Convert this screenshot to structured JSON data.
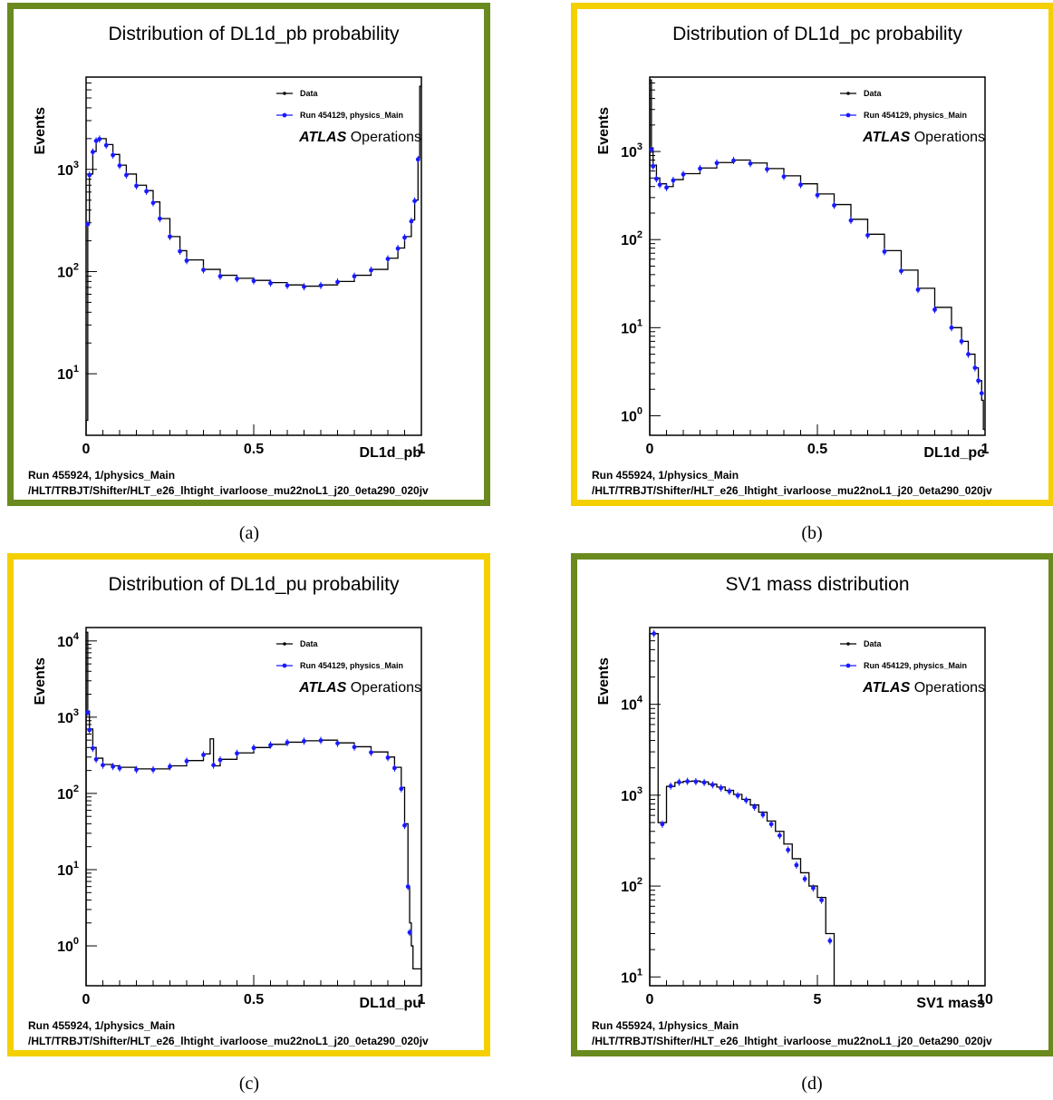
{
  "colors": {
    "green_border": "#6a8a1e",
    "yellow_border": "#f4d000",
    "data_line": "#000000",
    "reference_points": "#1a1aff"
  },
  "panels": [
    {
      "caption": "(a)",
      "border_color": "green",
      "title": "Distribution of DL1d_pb probability",
      "xlabel": "DL1d_pb",
      "ylabel": "Events",
      "x_ticks": [
        "0",
        "0.5",
        "1"
      ],
      "y_ticks": [
        {
          "base": "10",
          "exp": "1"
        },
        {
          "base": "10",
          "exp": "2"
        },
        {
          "base": "10",
          "exp": "3"
        }
      ],
      "legend": {
        "line": "Data",
        "points": "Run 454129, physics_Main"
      },
      "atlas_bold": "ATLAS",
      "atlas_rest": " Operations",
      "footer1": "Run 455924, 1/physics_Main",
      "footer2": "/HLT/TRBJT/Shifter/HLT_e26_lhtight_ivarloose_mu22noL1_j20_0eta290_020jv"
    },
    {
      "caption": "(b)",
      "border_color": "yellow",
      "title": "Distribution of DL1d_pc probability",
      "xlabel": "DL1d_pc",
      "ylabel": "Events",
      "x_ticks": [
        "0",
        "0.5",
        "1"
      ],
      "y_ticks": [
        {
          "base": "10",
          "exp": "0"
        },
        {
          "base": "10",
          "exp": "1"
        },
        {
          "base": "10",
          "exp": "2"
        },
        {
          "base": "10",
          "exp": "3"
        }
      ],
      "legend": {
        "line": "Data",
        "points": "Run 454129, physics_Main"
      },
      "atlas_bold": "ATLAS",
      "atlas_rest": " Operations",
      "footer1": "Run 455924, 1/physics_Main",
      "footer2": "/HLT/TRBJT/Shifter/HLT_e26_lhtight_ivarloose_mu22noL1_j20_0eta290_020jv"
    },
    {
      "caption": "(c)",
      "border_color": "yellow",
      "title": "Distribution of DL1d_pu probability",
      "xlabel": "DL1d_pu",
      "ylabel": "Events",
      "x_ticks": [
        "0",
        "0.5",
        "1"
      ],
      "y_ticks": [
        {
          "base": "10",
          "exp": "0"
        },
        {
          "base": "10",
          "exp": "1"
        },
        {
          "base": "10",
          "exp": "2"
        },
        {
          "base": "10",
          "exp": "3"
        },
        {
          "base": "10",
          "exp": "4"
        }
      ],
      "legend": {
        "line": "Data",
        "points": "Run 454129, physics_Main"
      },
      "atlas_bold": "ATLAS",
      "atlas_rest": " Operations",
      "footer1": "Run 455924, 1/physics_Main",
      "footer2": "/HLT/TRBJT/Shifter/HLT_e26_lhtight_ivarloose_mu22noL1_j20_0eta290_020jv"
    },
    {
      "caption": "(d)",
      "border_color": "green",
      "title": "SV1 mass distribution",
      "xlabel": "SV1 mass",
      "ylabel": "Events",
      "x_ticks": [
        "0",
        "5",
        "10"
      ],
      "y_ticks": [
        {
          "base": "10",
          "exp": "1"
        },
        {
          "base": "10",
          "exp": "2"
        },
        {
          "base": "10",
          "exp": "3"
        },
        {
          "base": "10",
          "exp": "4"
        }
      ],
      "legend": {
        "line": "Data",
        "points": "Run 454129, physics_Main"
      },
      "atlas_bold": "ATLAS",
      "atlas_rest": " Operations",
      "footer1": "Run 455924, 1/physics_Main",
      "footer2": "/HLT/TRBJT/Shifter/HLT_e26_lhtight_ivarloose_mu22noL1_j20_0eta290_020jv"
    }
  ],
  "chart_data": [
    {
      "type": "line",
      "title": "Distribution of DL1d_pb probability",
      "xlabel": "DL1d_pb",
      "ylabel": "Events",
      "xlim": [
        0,
        1
      ],
      "ylim": [
        2.5,
        8000
      ],
      "yscale": "log",
      "series": [
        {
          "name": "Data",
          "style": "step",
          "x": [
            0.0,
            0.005,
            0.01,
            0.02,
            0.03,
            0.04,
            0.06,
            0.08,
            0.1,
            0.12,
            0.15,
            0.18,
            0.2,
            0.22,
            0.25,
            0.28,
            0.3,
            0.35,
            0.4,
            0.45,
            0.5,
            0.55,
            0.6,
            0.65,
            0.7,
            0.75,
            0.8,
            0.85,
            0.9,
            0.93,
            0.95,
            0.97,
            0.98,
            0.99,
            0.995
          ],
          "y": [
            3.5,
            300,
            900,
            1500,
            1950,
            2000,
            1750,
            1400,
            1100,
            900,
            700,
            620,
            480,
            330,
            220,
            160,
            130,
            105,
            92,
            86,
            82,
            78,
            74,
            72,
            74,
            80,
            92,
            105,
            135,
            170,
            220,
            320,
            500,
            1300,
            6500
          ]
        },
        {
          "name": "Run 454129, physics_Main",
          "style": "points",
          "x": [
            0.005,
            0.01,
            0.02,
            0.03,
            0.04,
            0.06,
            0.08,
            0.1,
            0.12,
            0.15,
            0.18,
            0.2,
            0.22,
            0.25,
            0.28,
            0.3,
            0.35,
            0.4,
            0.45,
            0.5,
            0.55,
            0.6,
            0.65,
            0.7,
            0.75,
            0.8,
            0.85,
            0.9,
            0.93,
            0.95,
            0.97,
            0.98,
            0.99
          ],
          "y": [
            290,
            880,
            1480,
            1900,
            1980,
            1720,
            1380,
            1090,
            880,
            690,
            610,
            470,
            330,
            220,
            158,
            128,
            104,
            90,
            85,
            81,
            77,
            73,
            71,
            73,
            79,
            90,
            103,
            133,
            168,
            215,
            310,
            490,
            1250
          ]
        }
      ]
    },
    {
      "type": "line",
      "title": "Distribution of DL1d_pc probability",
      "xlabel": "DL1d_pc",
      "ylabel": "Events",
      "xlim": [
        0,
        1
      ],
      "ylim": [
        0.6,
        7000
      ],
      "yscale": "log",
      "series": [
        {
          "name": "Data",
          "style": "step",
          "x": [
            0.0,
            0.005,
            0.01,
            0.02,
            0.03,
            0.05,
            0.07,
            0.1,
            0.15,
            0.2,
            0.25,
            0.3,
            0.35,
            0.4,
            0.45,
            0.5,
            0.55,
            0.6,
            0.65,
            0.7,
            0.75,
            0.8,
            0.85,
            0.9,
            0.93,
            0.95,
            0.97,
            0.98,
            0.99,
            0.995
          ],
          "y": [
            6500,
            1100,
            700,
            500,
            430,
            400,
            480,
            560,
            650,
            750,
            800,
            740,
            640,
            530,
            430,
            330,
            250,
            170,
            115,
            75,
            45,
            28,
            17,
            10,
            7,
            5,
            3.5,
            2.5,
            1.5,
            0.7
          ]
        },
        {
          "name": "Run 454129, physics_Main",
          "style": "points",
          "x": [
            0.005,
            0.01,
            0.02,
            0.03,
            0.05,
            0.07,
            0.1,
            0.15,
            0.2,
            0.25,
            0.3,
            0.35,
            0.4,
            0.45,
            0.5,
            0.55,
            0.6,
            0.65,
            0.7,
            0.75,
            0.8,
            0.85,
            0.9,
            0.93,
            0.95,
            0.97,
            0.98,
            0.99
          ],
          "y": [
            1050,
            680,
            490,
            420,
            390,
            470,
            550,
            640,
            740,
            790,
            730,
            630,
            520,
            420,
            320,
            245,
            165,
            112,
            73,
            44,
            27,
            16,
            10,
            7,
            5,
            3.5,
            2.5,
            1.8
          ]
        }
      ]
    },
    {
      "type": "line",
      "title": "Distribution of DL1d_pu probability",
      "xlabel": "DL1d_pu",
      "ylabel": "Events",
      "xlim": [
        0,
        1
      ],
      "ylim": [
        0.3,
        15000
      ],
      "yscale": "log",
      "series": [
        {
          "name": "Data",
          "style": "step",
          "x": [
            0.0,
            0.005,
            0.01,
            0.02,
            0.03,
            0.05,
            0.08,
            0.1,
            0.15,
            0.2,
            0.25,
            0.3,
            0.35,
            0.37,
            0.38,
            0.4,
            0.45,
            0.5,
            0.55,
            0.6,
            0.65,
            0.7,
            0.75,
            0.8,
            0.85,
            0.9,
            0.92,
            0.94,
            0.95,
            0.96,
            0.965,
            0.97,
            0.975
          ],
          "y": [
            13000,
            1200,
            700,
            400,
            290,
            240,
            230,
            220,
            210,
            210,
            230,
            270,
            330,
            520,
            230,
            280,
            340,
            400,
            440,
            470,
            490,
            500,
            460,
            410,
            350,
            300,
            220,
            120,
            40,
            6,
            2,
            1,
            0.5
          ]
        },
        {
          "name": "Run 454129, physics_Main",
          "style": "points",
          "x": [
            0.005,
            0.01,
            0.02,
            0.03,
            0.05,
            0.08,
            0.1,
            0.15,
            0.2,
            0.25,
            0.3,
            0.35,
            0.38,
            0.4,
            0.45,
            0.5,
            0.55,
            0.6,
            0.65,
            0.7,
            0.75,
            0.8,
            0.85,
            0.9,
            0.92,
            0.94,
            0.95,
            0.96,
            0.965
          ],
          "y": [
            1150,
            680,
            390,
            280,
            235,
            225,
            215,
            205,
            205,
            225,
            265,
            320,
            235,
            275,
            335,
            395,
            430,
            465,
            485,
            495,
            455,
            405,
            345,
            295,
            215,
            115,
            38,
            6,
            1.5
          ]
        }
      ]
    },
    {
      "type": "line",
      "title": "SV1 mass distribution",
      "xlabel": "SV1 mass",
      "ylabel": "Events",
      "xlim": [
        0,
        10
      ],
      "ylim": [
        8,
        70000
      ],
      "yscale": "log",
      "series": [
        {
          "name": "Data",
          "style": "step",
          "x": [
            0.0,
            0.25,
            0.5,
            0.75,
            1.0,
            1.25,
            1.5,
            1.75,
            2.0,
            2.25,
            2.5,
            2.75,
            3.0,
            3.25,
            3.5,
            3.75,
            4.0,
            4.25,
            4.5,
            4.75,
            5.0,
            5.25,
            5.5
          ],
          "y": [
            60000,
            500,
            1250,
            1380,
            1420,
            1430,
            1400,
            1320,
            1230,
            1130,
            1020,
            900,
            780,
            650,
            520,
            400,
            290,
            200,
            140,
            100,
            75,
            30,
            5
          ]
        },
        {
          "name": "Run 454129, physics_Main",
          "style": "points",
          "x": [
            0.125,
            0.375,
            0.625,
            0.875,
            1.125,
            1.375,
            1.625,
            1.875,
            2.125,
            2.375,
            2.625,
            2.875,
            3.125,
            3.375,
            3.625,
            3.875,
            4.125,
            4.375,
            4.625,
            4.875,
            5.125,
            5.375
          ],
          "y": [
            60000,
            480,
            1260,
            1390,
            1420,
            1410,
            1380,
            1300,
            1200,
            1100,
            990,
            880,
            740,
            610,
            480,
            360,
            250,
            170,
            120,
            95,
            70,
            25
          ]
        }
      ]
    }
  ]
}
